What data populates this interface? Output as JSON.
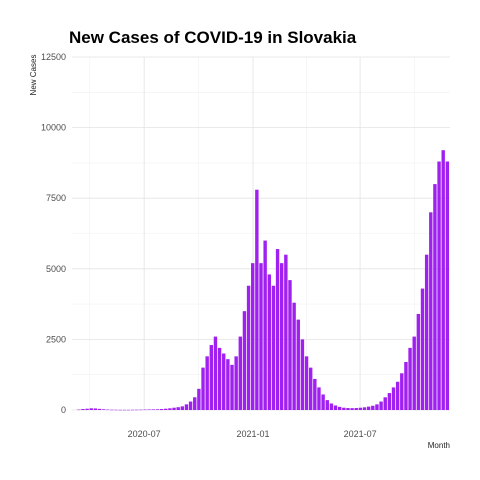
{
  "chart_data": {
    "type": "bar",
    "title": "New Cases of COVID-19 in Slovakia",
    "xlabel": "Month",
    "ylabel": "New Cases",
    "ylim": [
      0,
      12500
    ],
    "y_ticks": [
      0,
      2500,
      5000,
      7500,
      10000,
      12500
    ],
    "xlim": [
      "2020-03-01",
      "2021-11-30"
    ],
    "x_ticks": [
      {
        "date": "2020-07-01",
        "label": "2020-07"
      },
      {
        "date": "2021-01-01",
        "label": "2021-01"
      },
      {
        "date": "2021-07-01",
        "label": "2021-07"
      }
    ],
    "grid": true,
    "bar_color": "#a020f0",
    "series": [
      {
        "granularity": "weekly_avg_daily_new_cases",
        "x": [
          "2020-03-09",
          "2020-03-16",
          "2020-03-23",
          "2020-03-30",
          "2020-04-06",
          "2020-04-13",
          "2020-04-20",
          "2020-04-27",
          "2020-05-04",
          "2020-05-11",
          "2020-05-18",
          "2020-05-25",
          "2020-06-01",
          "2020-06-08",
          "2020-06-15",
          "2020-06-22",
          "2020-06-29",
          "2020-07-06",
          "2020-07-13",
          "2020-07-20",
          "2020-07-27",
          "2020-08-03",
          "2020-08-10",
          "2020-08-17",
          "2020-08-24",
          "2020-08-31",
          "2020-09-07",
          "2020-09-14",
          "2020-09-21",
          "2020-09-28",
          "2020-10-05",
          "2020-10-12",
          "2020-10-19",
          "2020-10-26",
          "2020-11-02",
          "2020-11-09",
          "2020-11-16",
          "2020-11-23",
          "2020-11-30",
          "2020-12-07",
          "2020-12-14",
          "2020-12-21",
          "2020-12-28",
          "2021-01-04",
          "2021-01-11",
          "2021-01-18",
          "2021-01-25",
          "2021-02-01",
          "2021-02-08",
          "2021-02-15",
          "2021-02-22",
          "2021-03-01",
          "2021-03-08",
          "2021-03-15",
          "2021-03-22",
          "2021-03-29",
          "2021-04-05",
          "2021-04-12",
          "2021-04-19",
          "2021-04-26",
          "2021-05-03",
          "2021-05-10",
          "2021-05-17",
          "2021-05-24",
          "2021-05-31",
          "2021-06-07",
          "2021-06-14",
          "2021-06-21",
          "2021-06-28",
          "2021-07-05",
          "2021-07-12",
          "2021-07-19",
          "2021-07-26",
          "2021-08-02",
          "2021-08-09",
          "2021-08-16",
          "2021-08-23",
          "2021-08-30",
          "2021-09-06",
          "2021-09-13",
          "2021-09-20",
          "2021-09-27",
          "2021-10-04",
          "2021-10-11",
          "2021-10-18",
          "2021-10-25",
          "2021-11-01",
          "2021-11-08",
          "2021-11-15",
          "2021-11-22"
        ],
        "values": [
          15,
          35,
          45,
          60,
          55,
          40,
          25,
          15,
          10,
          8,
          6,
          5,
          6,
          8,
          10,
          12,
          15,
          20,
          22,
          25,
          35,
          45,
          60,
          80,
          100,
          130,
          200,
          300,
          450,
          750,
          1500,
          1900,
          2300,
          2600,
          2200,
          2000,
          1800,
          1600,
          1900,
          2600,
          3500,
          4400,
          5200,
          7800,
          5200,
          6000,
          4800,
          4400,
          5700,
          5200,
          5500,
          4600,
          3800,
          3200,
          2500,
          1900,
          1500,
          1100,
          800,
          550,
          350,
          230,
          160,
          110,
          80,
          70,
          65,
          70,
          80,
          95,
          120,
          150,
          200,
          300,
          450,
          600,
          800,
          1000,
          1300,
          1700,
          2200,
          2600,
          3400,
          4300,
          5500,
          7000,
          8000,
          8800,
          9200,
          8800
        ]
      }
    ]
  }
}
